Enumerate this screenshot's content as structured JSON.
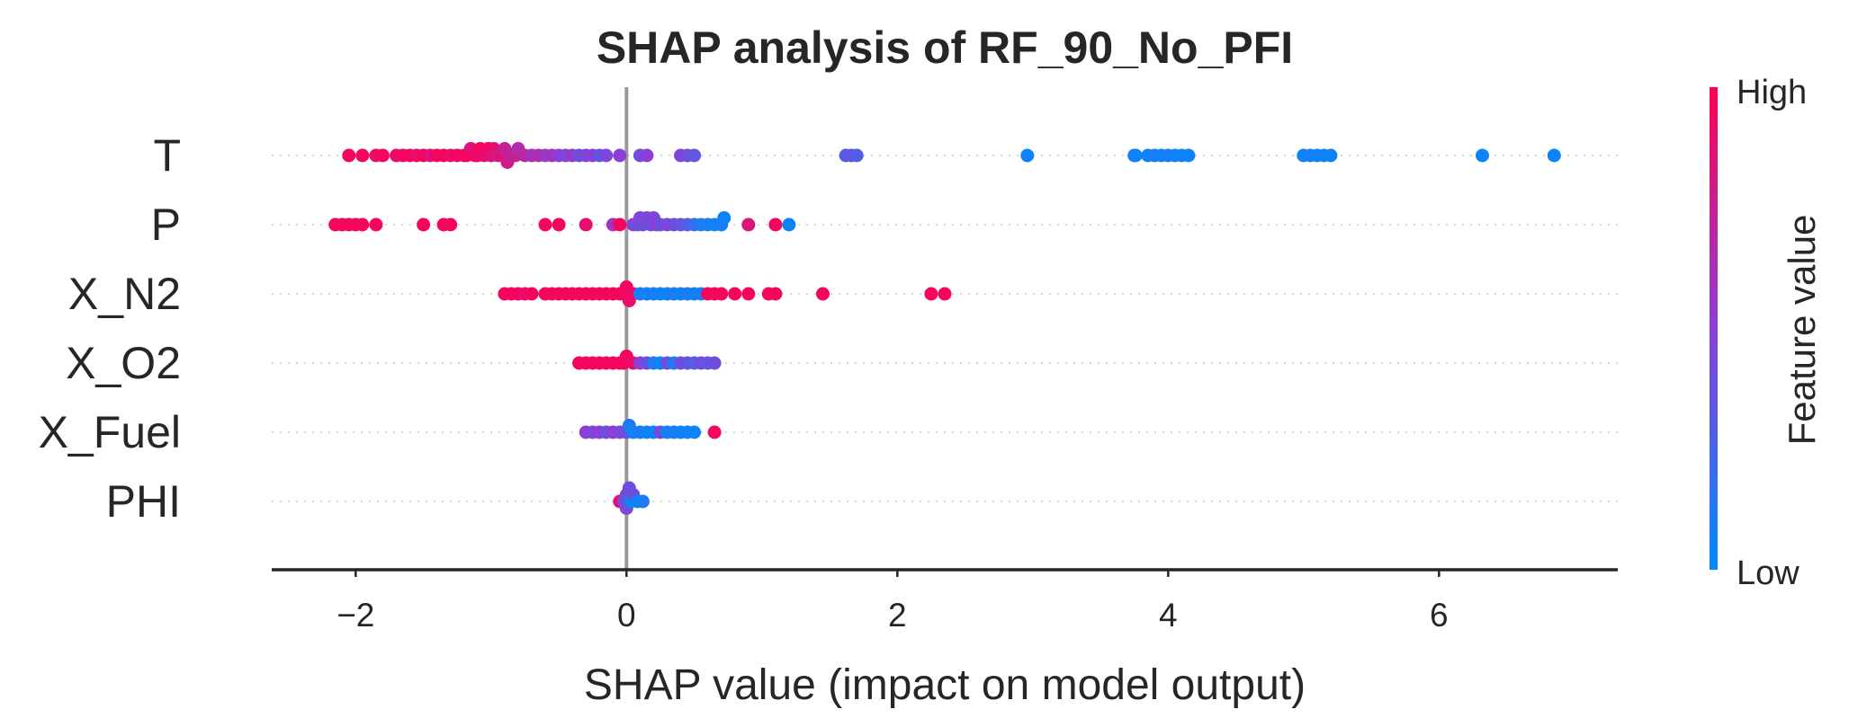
{
  "chart_data": {
    "type": "scatter",
    "subtype": "shap-beeswarm",
    "title": "SHAP analysis of RF_90_No_PFI",
    "xlabel": "SHAP value (impact on model output)",
    "ylabel": "",
    "xlim": [
      -2.62,
      7.32
    ],
    "xticks": [
      -2,
      0,
      2,
      4,
      6
    ],
    "xtick_labels": [
      "−2",
      "0",
      "2",
      "4",
      "6"
    ],
    "colorbar": {
      "title": "Feature value",
      "high_label": "High",
      "low_label": "Low"
    },
    "colors": {
      "high": "#ff0052",
      "mid": "#8c3fd6",
      "low": "#008bfb",
      "zero_line": "#999999",
      "axis": "#262626",
      "grid": "#cccccc"
    },
    "features": [
      {
        "name": "T",
        "points": [
          [
            -2.05,
            0.95
          ],
          [
            -1.95,
            0.95
          ],
          [
            -1.85,
            0.9
          ],
          [
            -1.8,
            0.95
          ],
          [
            -1.7,
            0.9
          ],
          [
            -1.65,
            0.95
          ],
          [
            -1.6,
            0.95
          ],
          [
            -1.55,
            0.9
          ],
          [
            -1.5,
            0.95
          ],
          [
            -1.45,
            0.85
          ],
          [
            -1.4,
            0.95
          ],
          [
            -1.35,
            0.95
          ],
          [
            -1.3,
            0.9
          ],
          [
            -1.25,
            0.95
          ],
          [
            -1.2,
            0.9
          ],
          [
            -1.18,
            0.95
          ],
          [
            -1.15,
            0.85
          ],
          [
            -1.12,
            0.95
          ],
          [
            -1.1,
            0.9
          ],
          [
            -1.08,
            0.95
          ],
          [
            -1.05,
            0.9
          ],
          [
            -1.02,
            0.95
          ],
          [
            -1.0,
            0.85
          ],
          [
            -0.98,
            0.9
          ],
          [
            -0.95,
            0.8
          ],
          [
            -0.92,
            0.85
          ],
          [
            -0.9,
            0.75
          ],
          [
            -0.88,
            0.8
          ],
          [
            -0.85,
            0.7
          ],
          [
            -0.82,
            0.75
          ],
          [
            -0.8,
            0.65
          ],
          [
            -0.75,
            0.7
          ],
          [
            -0.7,
            0.6
          ],
          [
            -0.65,
            0.65
          ],
          [
            -0.6,
            0.55
          ],
          [
            -0.55,
            0.6
          ],
          [
            -0.5,
            0.5
          ],
          [
            -0.45,
            0.45
          ],
          [
            -0.4,
            0.55
          ],
          [
            -0.35,
            0.4
          ],
          [
            -0.3,
            0.45
          ],
          [
            -0.25,
            0.5
          ],
          [
            -0.2,
            0.35
          ],
          [
            -0.15,
            0.45
          ],
          [
            -0.05,
            0.5
          ],
          [
            0.1,
            0.4
          ],
          [
            0.15,
            0.5
          ],
          [
            0.4,
            0.45
          ],
          [
            0.45,
            0.4
          ],
          [
            0.5,
            0.35
          ],
          [
            1.62,
            0.3
          ],
          [
            1.66,
            0.35
          ],
          [
            1.7,
            0.3
          ],
          [
            2.96,
            0.05
          ],
          [
            3.75,
            0.1
          ],
          [
            3.76,
            0.05
          ],
          [
            3.85,
            0.05
          ],
          [
            3.9,
            0.1
          ],
          [
            3.95,
            0.05
          ],
          [
            4.0,
            0.1
          ],
          [
            4.05,
            0.05
          ],
          [
            4.1,
            0.05
          ],
          [
            4.15,
            0.05
          ],
          [
            5.0,
            0.05
          ],
          [
            5.05,
            0.1
          ],
          [
            5.1,
            0.05
          ],
          [
            5.15,
            0.05
          ],
          [
            5.2,
            0.05
          ],
          [
            6.32,
            0.05
          ],
          [
            6.85,
            0.05
          ]
        ]
      },
      {
        "name": "P",
        "points": [
          [
            -2.15,
            0.95
          ],
          [
            -2.1,
            0.95
          ],
          [
            -2.05,
            0.95
          ],
          [
            -2.0,
            0.95
          ],
          [
            -1.95,
            0.95
          ],
          [
            -1.85,
            0.95
          ],
          [
            -1.5,
            0.95
          ],
          [
            -1.35,
            0.95
          ],
          [
            -1.3,
            0.95
          ],
          [
            -0.6,
            0.95
          ],
          [
            -0.5,
            0.95
          ],
          [
            -0.3,
            0.9
          ],
          [
            -0.1,
            0.6
          ],
          [
            -0.05,
            0.95
          ],
          [
            0.05,
            0.5
          ],
          [
            0.08,
            0.4
          ],
          [
            0.1,
            0.45
          ],
          [
            0.12,
            0.4
          ],
          [
            0.15,
            0.45
          ],
          [
            0.18,
            0.4
          ],
          [
            0.2,
            0.45
          ],
          [
            0.22,
            0.5
          ],
          [
            0.25,
            0.4
          ],
          [
            0.3,
            0.45
          ],
          [
            0.35,
            0.4
          ],
          [
            0.4,
            0.35
          ],
          [
            0.45,
            0.3
          ],
          [
            0.5,
            0.2
          ],
          [
            0.55,
            0.1
          ],
          [
            0.6,
            0.1
          ],
          [
            0.65,
            0.05
          ],
          [
            0.7,
            0.1
          ],
          [
            0.72,
            0.05
          ],
          [
            0.9,
            0.85
          ],
          [
            1.1,
            0.95
          ],
          [
            1.2,
            0.05
          ]
        ]
      },
      {
        "name": "X_N2",
        "points": [
          [
            -0.9,
            0.95
          ],
          [
            -0.85,
            0.95
          ],
          [
            -0.8,
            0.95
          ],
          [
            -0.75,
            0.9
          ],
          [
            -0.7,
            0.95
          ],
          [
            -0.6,
            0.95
          ],
          [
            -0.55,
            0.95
          ],
          [
            -0.5,
            0.95
          ],
          [
            -0.45,
            0.95
          ],
          [
            -0.4,
            0.95
          ],
          [
            -0.35,
            0.95
          ],
          [
            -0.3,
            0.95
          ],
          [
            -0.25,
            0.95
          ],
          [
            -0.2,
            0.95
          ],
          [
            -0.15,
            0.95
          ],
          [
            -0.1,
            0.95
          ],
          [
            -0.05,
            0.95
          ],
          [
            -0.02,
            0.95
          ],
          [
            0.0,
            0.95
          ],
          [
            0.02,
            0.9
          ],
          [
            0.05,
            0.9
          ],
          [
            0.1,
            0.1
          ],
          [
            0.15,
            0.05
          ],
          [
            0.2,
            0.1
          ],
          [
            0.25,
            0.05
          ],
          [
            0.3,
            0.05
          ],
          [
            0.35,
            0.1
          ],
          [
            0.4,
            0.05
          ],
          [
            0.45,
            0.1
          ],
          [
            0.5,
            0.05
          ],
          [
            0.55,
            0.1
          ],
          [
            0.6,
            0.95
          ],
          [
            0.65,
            0.95
          ],
          [
            0.7,
            0.95
          ],
          [
            0.8,
            0.95
          ],
          [
            0.9,
            0.95
          ],
          [
            1.05,
            0.95
          ],
          [
            1.1,
            0.95
          ],
          [
            1.45,
            0.95
          ],
          [
            2.25,
            0.95
          ],
          [
            2.35,
            0.95
          ]
        ]
      },
      {
        "name": "X_O2",
        "points": [
          [
            -0.35,
            0.95
          ],
          [
            -0.3,
            0.95
          ],
          [
            -0.25,
            0.95
          ],
          [
            -0.2,
            0.95
          ],
          [
            -0.15,
            0.95
          ],
          [
            -0.1,
            0.95
          ],
          [
            -0.05,
            0.95
          ],
          [
            -0.02,
            0.95
          ],
          [
            0.0,
            0.95
          ],
          [
            0.05,
            0.9
          ],
          [
            0.1,
            0.5
          ],
          [
            0.15,
            0.4
          ],
          [
            0.2,
            0.1
          ],
          [
            0.25,
            0.05
          ],
          [
            0.3,
            0.4
          ],
          [
            0.35,
            0.1
          ],
          [
            0.4,
            0.4
          ],
          [
            0.45,
            0.35
          ],
          [
            0.5,
            0.3
          ],
          [
            0.55,
            0.4
          ],
          [
            0.6,
            0.35
          ],
          [
            0.65,
            0.4
          ]
        ]
      },
      {
        "name": "X_Fuel",
        "points": [
          [
            -0.3,
            0.5
          ],
          [
            -0.25,
            0.45
          ],
          [
            -0.2,
            0.5
          ],
          [
            -0.15,
            0.4
          ],
          [
            -0.1,
            0.5
          ],
          [
            -0.05,
            0.45
          ],
          [
            0.0,
            0.4
          ],
          [
            0.02,
            0.1
          ],
          [
            0.05,
            0.05
          ],
          [
            0.1,
            0.1
          ],
          [
            0.15,
            0.05
          ],
          [
            0.2,
            0.05
          ],
          [
            0.25,
            0.4
          ],
          [
            0.3,
            0.05
          ],
          [
            0.35,
            0.1
          ],
          [
            0.4,
            0.05
          ],
          [
            0.45,
            0.05
          ],
          [
            0.5,
            0.05
          ],
          [
            0.65,
            0.95
          ]
        ]
      },
      {
        "name": "PHI",
        "points": [
          [
            -0.05,
            0.9
          ],
          [
            -0.02,
            0.4
          ],
          [
            0.0,
            0.4
          ],
          [
            0.0,
            0.45
          ],
          [
            0.02,
            0.4
          ],
          [
            0.03,
            0.05
          ],
          [
            0.05,
            0.4
          ],
          [
            0.08,
            0.05
          ],
          [
            0.12,
            0.1
          ]
        ]
      }
    ]
  }
}
